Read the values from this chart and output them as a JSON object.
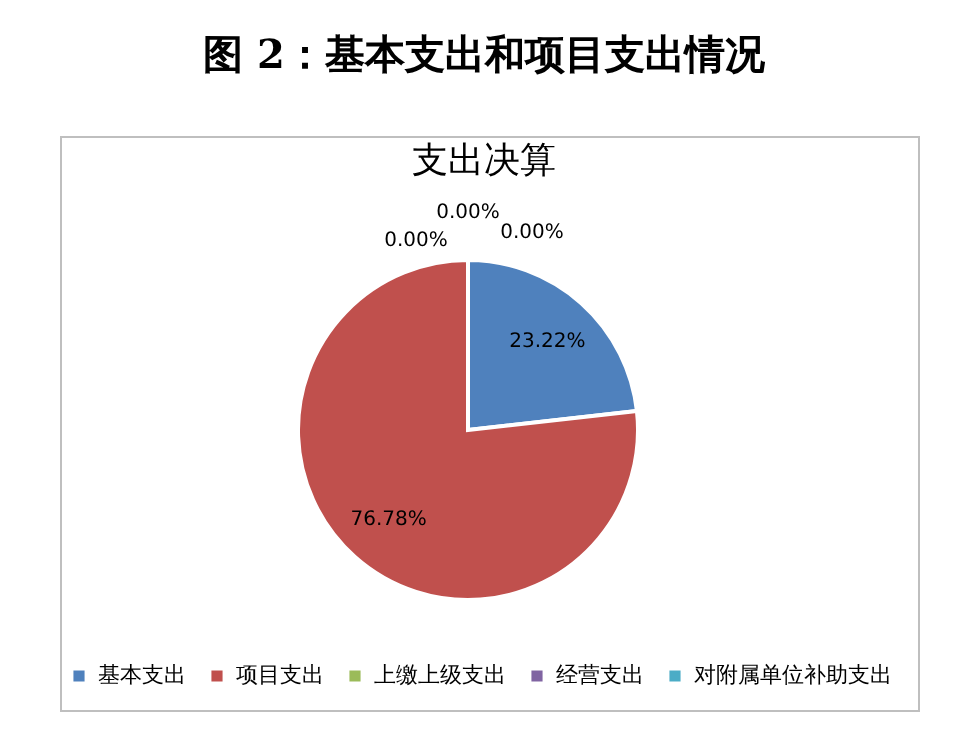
{
  "chart_data": {
    "type": "pie",
    "title": "图 2：基本支出和项目支出情况",
    "subtitle": "支出决算",
    "categories": [
      "基本支出",
      "项目支出",
      "上缴上级支出",
      "经营支出",
      "对附属单位补助支出"
    ],
    "values": [
      23.22,
      76.78,
      0,
      0,
      0
    ],
    "value_labels": [
      "23.22%",
      "76.78%",
      "0.00%",
      "0.00%",
      "0.00%"
    ],
    "colors": [
      "#4f81bd",
      "#c0504d",
      "#9bbb59",
      "#8064a2",
      "#4bacc6"
    ],
    "legend": "bottom"
  }
}
